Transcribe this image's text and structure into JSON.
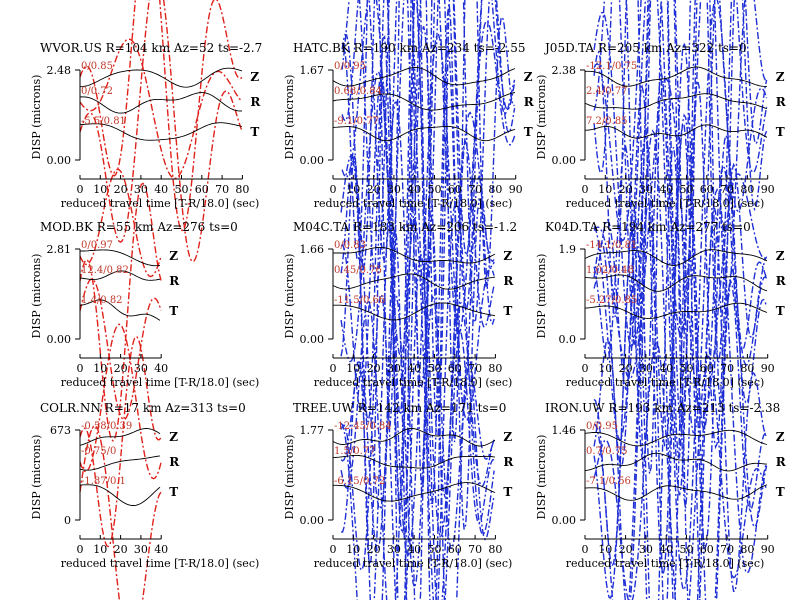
{
  "colors": {
    "observed": "#000000",
    "synthetic_blue": "#1f2fd6",
    "synthetic_red": "#e0211a",
    "annotation": "#c0392b"
  },
  "chart_data": [
    {
      "type": "line",
      "title": "WVOR.US R=104 km Az=52 ts=-2.7",
      "ylabel": "DISP (microns)",
      "xlabel": "reduced travel time [T-R/18.0] (sec)",
      "xlim": [
        0,
        80
      ],
      "xticks": [
        0,
        10,
        20,
        30,
        40,
        50,
        60,
        70,
        80
      ],
      "ytick_labels": [
        "2.48",
        "0.00"
      ],
      "synthetic_color": "red",
      "components": [
        {
          "name": "Z",
          "annotation": "0/0.85"
        },
        {
          "name": "R",
          "annotation": "0/0.72"
        },
        {
          "name": "T",
          "annotation": "-5.5/0.81"
        }
      ]
    },
    {
      "type": "line",
      "title": "HATC.BK R=190 km Az=234 ts=-2.55",
      "ylabel": "DISP (microns)",
      "xlabel": "reduced travel time [T-R/18.0] (sec)",
      "xlim": [
        0,
        90
      ],
      "xticks": [
        0,
        10,
        20,
        30,
        40,
        50,
        60,
        70,
        80,
        90
      ],
      "ytick_labels": [
        "1.67",
        "0.00"
      ],
      "synthetic_color": "blue",
      "components": [
        {
          "name": "Z",
          "annotation": "0/0.95"
        },
        {
          "name": "R",
          "annotation": "0.68/0.84"
        },
        {
          "name": "T",
          "annotation": "-9.1/0.77"
        }
      ]
    },
    {
      "type": "line",
      "title": "J05D.TA R=205 km Az=322 ts=0",
      "ylabel": "DISP (microns)",
      "xlabel": "reduced travel time [T-R/18.0] (sec)",
      "xlim": [
        0,
        90
      ],
      "xticks": [
        0,
        10,
        20,
        30,
        40,
        50,
        60,
        70,
        80,
        90
      ],
      "ytick_labels": [
        "2.38",
        "0.00"
      ],
      "synthetic_color": "blue",
      "components": [
        {
          "name": "Z",
          "annotation": "-12.1/0.75"
        },
        {
          "name": "R",
          "annotation": "2.4/0.77"
        },
        {
          "name": "T",
          "annotation": "7.2/0.85"
        }
      ]
    },
    {
      "type": "line",
      "title": "MOD.BK R=55 km Az=276 ts=0",
      "ylabel": "DISP (microns)",
      "xlabel": "reduced travel time [T-R/18.0] (sec)",
      "xlim": [
        0,
        40
      ],
      "xticks": [
        0,
        10,
        20,
        30,
        40
      ],
      "ytick_labels": [
        "2.81",
        "0.00"
      ],
      "synthetic_color": "red",
      "components": [
        {
          "name": "Z",
          "annotation": "0/0.97"
        },
        {
          "name": "R",
          "annotation": "12.4/0.82"
        },
        {
          "name": "T",
          "annotation": "1.4/0.82"
        }
      ]
    },
    {
      "type": "line",
      "title": "M04C.TA R=183 km Az=206 ts=-1.2",
      "ylabel": "DISP (microns)",
      "xlabel": "reduced travel time [T-R/18.0] (sec)",
      "xlim": [
        0,
        80
      ],
      "xticks": [
        0,
        10,
        20,
        30,
        40,
        50,
        60,
        70,
        80
      ],
      "ytick_labels": [
        "1.66",
        "0.00"
      ],
      "synthetic_color": "blue",
      "components": [
        {
          "name": "Z",
          "annotation": "0/0.83"
        },
        {
          "name": "R",
          "annotation": "0.45/0.76"
        },
        {
          "name": "T",
          "annotation": "-11.5/0.66"
        }
      ]
    },
    {
      "type": "line",
      "title": "K04D.TA R=194 km Az=277 ts=0",
      "ylabel": "DISP (microns)",
      "xlabel": "reduced travel time [T-R/18.0] (sec)",
      "xlim": [
        0,
        90
      ],
      "xticks": [
        0,
        10,
        20,
        30,
        40,
        50,
        60,
        70,
        80,
        90
      ],
      "ytick_labels": [
        "1.9",
        "0.0"
      ],
      "synthetic_color": "blue",
      "components": [
        {
          "name": "Z",
          "annotation": "-14.1/0.81"
        },
        {
          "name": "R",
          "annotation": "1.02/0.48"
        },
        {
          "name": "T",
          "annotation": "-5.27/0.85"
        }
      ]
    },
    {
      "type": "line",
      "title": "COLR.NN R=17 km Az=313 ts=0",
      "ylabel": "DISP (microns)",
      "xlabel": "reduced travel time [T-R/18.0] (sec)",
      "xlim": [
        0,
        40
      ],
      "xticks": [
        0,
        10,
        20,
        30,
        40
      ],
      "ytick_labels": [
        "673",
        "0"
      ],
      "synthetic_color": "red",
      "components": [
        {
          "name": "Z",
          "annotation": "-0.58/0.39"
        },
        {
          "name": "R",
          "annotation": "-0.75/0"
        },
        {
          "name": "T",
          "annotation": "-1.87/0.1"
        }
      ]
    },
    {
      "type": "line",
      "title": "TREE.UW R=142 km Az=171 ts=0",
      "ylabel": "DISP (microns)",
      "xlabel": "reduced travel time [T-R/18.0] (sec)",
      "xlim": [
        0,
        80
      ],
      "xticks": [
        0,
        10,
        20,
        30,
        40,
        50,
        60,
        70,
        80
      ],
      "ytick_labels": [
        "1.77",
        "0.00"
      ],
      "synthetic_color": "blue",
      "components": [
        {
          "name": "Z",
          "annotation": "-12.45/0.84"
        },
        {
          "name": "R",
          "annotation": "1.5/0.77"
        },
        {
          "name": "T",
          "annotation": "-6.15/0.72"
        }
      ]
    },
    {
      "type": "line",
      "title": "IRON.UW R=193 km Az=213 ts=-2.38",
      "ylabel": "DISP (microns)",
      "xlabel": "reduced travel time [T-R/18.0] (sec)",
      "xlim": [
        0,
        90
      ],
      "xticks": [
        0,
        10,
        20,
        30,
        40,
        50,
        60,
        70,
        80,
        90
      ],
      "ytick_labels": [
        "1.46",
        "0.00"
      ],
      "synthetic_color": "blue",
      "components": [
        {
          "name": "Z",
          "annotation": "0/0.95"
        },
        {
          "name": "R",
          "annotation": "0.7/0.75"
        },
        {
          "name": "T",
          "annotation": "-7.1/0.56"
        }
      ]
    }
  ]
}
